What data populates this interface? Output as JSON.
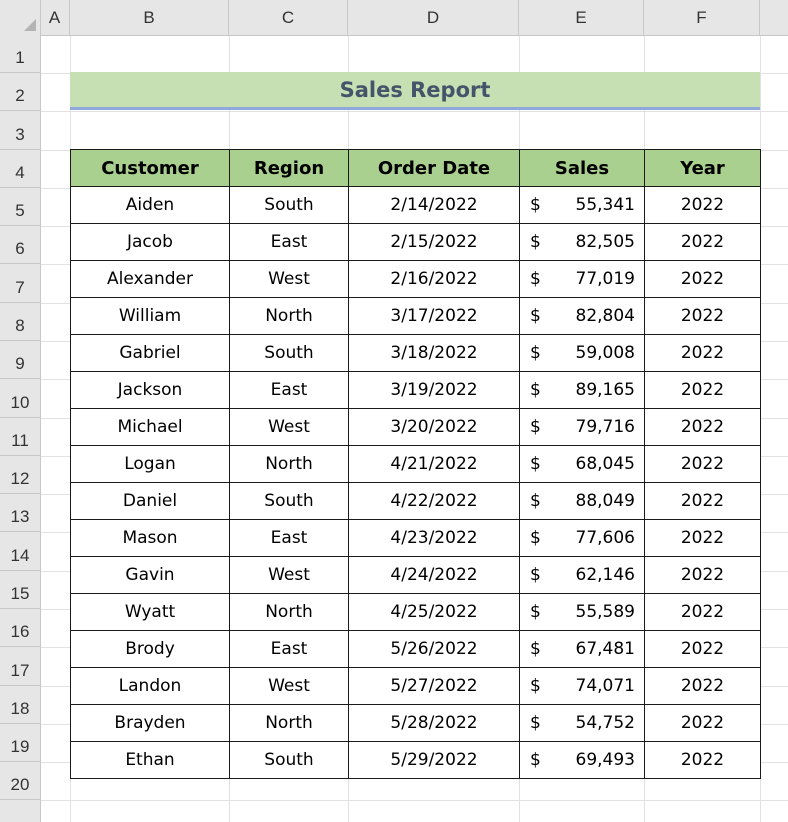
{
  "columns": [
    "A",
    "B",
    "C",
    "D",
    "E",
    "F"
  ],
  "rows": [
    "1",
    "2",
    "3",
    "4",
    "5",
    "6",
    "7",
    "8",
    "9",
    "10",
    "11",
    "12",
    "13",
    "14",
    "15",
    "16",
    "17",
    "18",
    "19",
    "20"
  ],
  "report": {
    "title": "Sales Report",
    "headers": {
      "customer": "Customer",
      "region": "Region",
      "order_date": "Order Date",
      "sales": "Sales",
      "year": "Year"
    },
    "currency_symbol": "$",
    "records": [
      {
        "customer": "Aiden",
        "region": "South",
        "order_date": "2/14/2022",
        "sales": "55,341",
        "year": "2022"
      },
      {
        "customer": "Jacob",
        "region": "East",
        "order_date": "2/15/2022",
        "sales": "82,505",
        "year": "2022"
      },
      {
        "customer": "Alexander",
        "region": "West",
        "order_date": "2/16/2022",
        "sales": "77,019",
        "year": "2022"
      },
      {
        "customer": "William",
        "region": "North",
        "order_date": "3/17/2022",
        "sales": "82,804",
        "year": "2022"
      },
      {
        "customer": "Gabriel",
        "region": "South",
        "order_date": "3/18/2022",
        "sales": "59,008",
        "year": "2022"
      },
      {
        "customer": "Jackson",
        "region": "East",
        "order_date": "3/19/2022",
        "sales": "89,165",
        "year": "2022"
      },
      {
        "customer": "Michael",
        "region": "West",
        "order_date": "3/20/2022",
        "sales": "79,716",
        "year": "2022"
      },
      {
        "customer": "Logan",
        "region": "North",
        "order_date": "4/21/2022",
        "sales": "68,045",
        "year": "2022"
      },
      {
        "customer": "Daniel",
        "region": "South",
        "order_date": "4/22/2022",
        "sales": "88,049",
        "year": "2022"
      },
      {
        "customer": "Mason",
        "region": "East",
        "order_date": "4/23/2022",
        "sales": "77,606",
        "year": "2022"
      },
      {
        "customer": "Gavin",
        "region": "West",
        "order_date": "4/24/2022",
        "sales": "62,146",
        "year": "2022"
      },
      {
        "customer": "Wyatt",
        "region": "North",
        "order_date": "4/25/2022",
        "sales": "55,589",
        "year": "2022"
      },
      {
        "customer": "Brody",
        "region": "East",
        "order_date": "5/26/2022",
        "sales": "67,481",
        "year": "2022"
      },
      {
        "customer": "Landon",
        "region": "West",
        "order_date": "5/27/2022",
        "sales": "74,071",
        "year": "2022"
      },
      {
        "customer": "Brayden",
        "region": "North",
        "order_date": "5/28/2022",
        "sales": "54,752",
        "year": "2022"
      },
      {
        "customer": "Ethan",
        "region": "South",
        "order_date": "5/29/2022",
        "sales": "69,493",
        "year": "2022"
      }
    ]
  },
  "colors": {
    "title_fill": "#c6e0b4",
    "title_text": "#44546a",
    "header_fill": "#a9d08e",
    "title_underline": "#8ea9db"
  }
}
